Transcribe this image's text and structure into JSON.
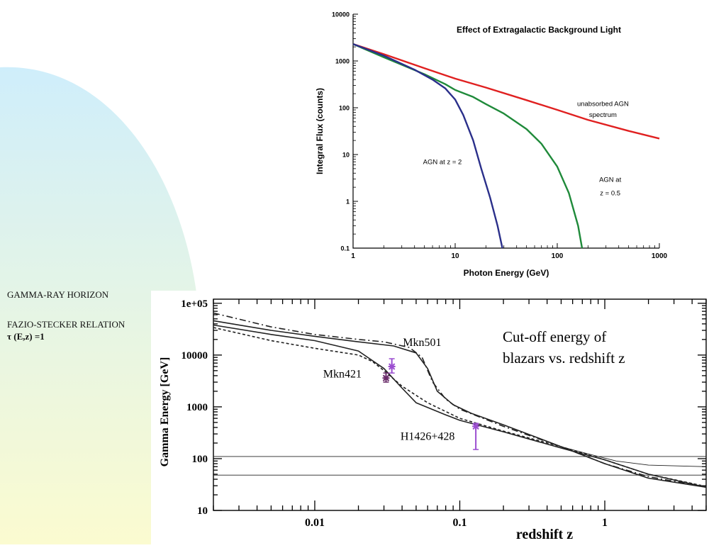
{
  "slide": {
    "background_colors": {
      "top": "#cfeefb",
      "bottom": "#fbfbd0"
    },
    "labels": {
      "gamma_ray_horizon": "GAMMA-RAY HORIZON",
      "fazio_stecker": "FAZIO-STECKER RELATION",
      "tau_relation": "τ (E,z) =1"
    }
  },
  "chart_data": [
    {
      "type": "line",
      "title": "Effect of Extragalactic Background Light",
      "xlabel": "Photon Energy (GeV)",
      "ylabel": "Integral Flux (counts)",
      "xscale": "log",
      "yscale": "log",
      "xlim": [
        1,
        1000
      ],
      "ylim": [
        0.1,
        10000
      ],
      "xticks": [
        1,
        10,
        100,
        1000
      ],
      "xtick_labels": [
        "1",
        "10",
        "100",
        "1000"
      ],
      "yticks": [
        0.1,
        1,
        10,
        100,
        1000,
        10000
      ],
      "ytick_labels": [
        "0.1",
        "1",
        "10",
        "100",
        "1000",
        "10000"
      ],
      "series": [
        {
          "name": "unabsorbed AGN spectrum",
          "color": "#e02020",
          "x": [
            1,
            2,
            5,
            10,
            20,
            50,
            100,
            200,
            500,
            1000
          ],
          "y": [
            2300,
            1400,
            700,
            420,
            270,
            145,
            90,
            55,
            32,
            22
          ]
        },
        {
          "name": "AGN at z = 0.5",
          "color": "#1f8a3a",
          "x": [
            1,
            2,
            5,
            8,
            10,
            15,
            20,
            30,
            50,
            70,
            100,
            130,
            160,
            175
          ],
          "y": [
            2300,
            1200,
            520,
            320,
            240,
            170,
            120,
            75,
            35,
            17,
            5.5,
            1.5,
            0.3,
            0.1
          ]
        },
        {
          "name": "AGN at z = 2",
          "color": "#2a2f8a",
          "x": [
            1,
            2,
            4,
            6,
            8,
            10,
            12,
            15,
            18,
            22,
            26,
            29
          ],
          "y": [
            2300,
            1300,
            650,
            400,
            260,
            150,
            70,
            20,
            5,
            1.2,
            0.3,
            0.1
          ]
        }
      ],
      "annotations": [
        {
          "text": "unabsorbed AGN",
          "x": 280,
          "y": 110
        },
        {
          "text": "spectrum",
          "x": 280,
          "y": 63
        },
        {
          "text": "AGN at z = 2",
          "x": 7.5,
          "y": 6.2
        },
        {
          "text": "AGN at",
          "x": 330,
          "y": 2.6
        },
        {
          "text": "z = 0.5",
          "x": 330,
          "y": 1.35
        }
      ]
    },
    {
      "type": "line",
      "title": "Cut-off energy of blazars vs. redshift z",
      "title_lines": [
        "Cut-off energy of",
        "blazars vs. redshift z"
      ],
      "xlabel": "redshift z",
      "ylabel": "Gamma Energy [GeV]",
      "xscale": "log",
      "yscale": "log",
      "xlim": [
        0.002,
        5
      ],
      "ylim": [
        10,
        120000
      ],
      "xticks": [
        0.01,
        0.1,
        1
      ],
      "xtick_labels": [
        "0.01",
        "0.1",
        "1"
      ],
      "yticks": [
        10,
        100,
        1000,
        10000,
        100000
      ],
      "ytick_labels": [
        "10",
        "100",
        "1000",
        "10000",
        "1e+05"
      ],
      "series": [
        {
          "name": "upper dash-dot",
          "style": "dashdot",
          "color": "#222",
          "x": [
            0.002,
            0.005,
            0.01,
            0.02,
            0.03,
            0.045,
            0.055,
            0.065,
            0.08,
            0.1,
            0.2,
            0.5,
            1,
            2,
            5
          ],
          "y": [
            65000,
            35000,
            25000,
            20000,
            18000,
            14000,
            9000,
            3000,
            1400,
            900,
            420,
            170,
            80,
            45,
            28
          ]
        },
        {
          "name": "upper solid",
          "style": "solid",
          "color": "#222",
          "x": [
            0.002,
            0.005,
            0.01,
            0.02,
            0.035,
            0.05,
            0.06,
            0.07,
            0.09,
            0.12,
            0.2,
            0.5,
            1,
            2,
            5
          ],
          "y": [
            46000,
            30000,
            23000,
            18000,
            15000,
            11000,
            5500,
            2000,
            1100,
            750,
            450,
            170,
            80,
            42,
            28
          ]
        },
        {
          "name": "lower solid",
          "style": "solid",
          "color": "#222",
          "x": [
            0.002,
            0.005,
            0.01,
            0.02,
            0.03,
            0.04,
            0.05,
            0.08,
            0.1,
            0.2,
            0.5,
            1,
            2,
            5
          ],
          "y": [
            38000,
            25000,
            19000,
            12000,
            5500,
            2300,
            1200,
            700,
            550,
            330,
            160,
            95,
            50,
            28
          ]
        },
        {
          "name": "lower dashed",
          "style": "dashed",
          "color": "#222",
          "x": [
            0.002,
            0.005,
            0.01,
            0.02,
            0.025,
            0.03,
            0.04,
            0.06,
            0.1,
            0.2,
            0.5,
            1,
            2,
            5
          ],
          "y": [
            34000,
            19000,
            13500,
            10000,
            7500,
            5000,
            2500,
            1200,
            600,
            340,
            170,
            95,
            50,
            29
          ]
        },
        {
          "name": "flat 110",
          "style": "solid",
          "color": "#222",
          "width": 0.9,
          "x": [
            0.002,
            5
          ],
          "y": [
            110,
            110
          ]
        },
        {
          "name": "flat 48",
          "style": "solid",
          "color": "#222",
          "width": 0.9,
          "x": [
            0.002,
            5
          ],
          "y": [
            48,
            48
          ]
        },
        {
          "name": "tail line",
          "style": "solid",
          "color": "#222",
          "width": 0.9,
          "x": [
            0.5,
            0.8,
            1.2,
            2,
            5
          ],
          "y": [
            170,
            120,
            90,
            75,
            70
          ]
        }
      ],
      "points": [
        {
          "name": "Mkn421",
          "color": "#6b2d6b",
          "x": 0.031,
          "y": 3600,
          "err_low": 3000,
          "err_high": 4500
        },
        {
          "name": "Mkn501",
          "color": "#9b4ed0",
          "x": 0.034,
          "y": 6000,
          "err_low": 4500,
          "err_high": 8500
        },
        {
          "name": "H1426+428",
          "color": "#9b4ed0",
          "x": 0.129,
          "y": 420,
          "err_low": 150,
          "err_high": 480
        }
      ],
      "annotations": [
        {
          "text": "Mkn501",
          "x": 0.055,
          "y": 15000
        },
        {
          "text": "Mkn421",
          "x": 0.0155,
          "y": 3700
        },
        {
          "text": "H1426+428",
          "x": 0.06,
          "y": 230
        }
      ]
    }
  ]
}
